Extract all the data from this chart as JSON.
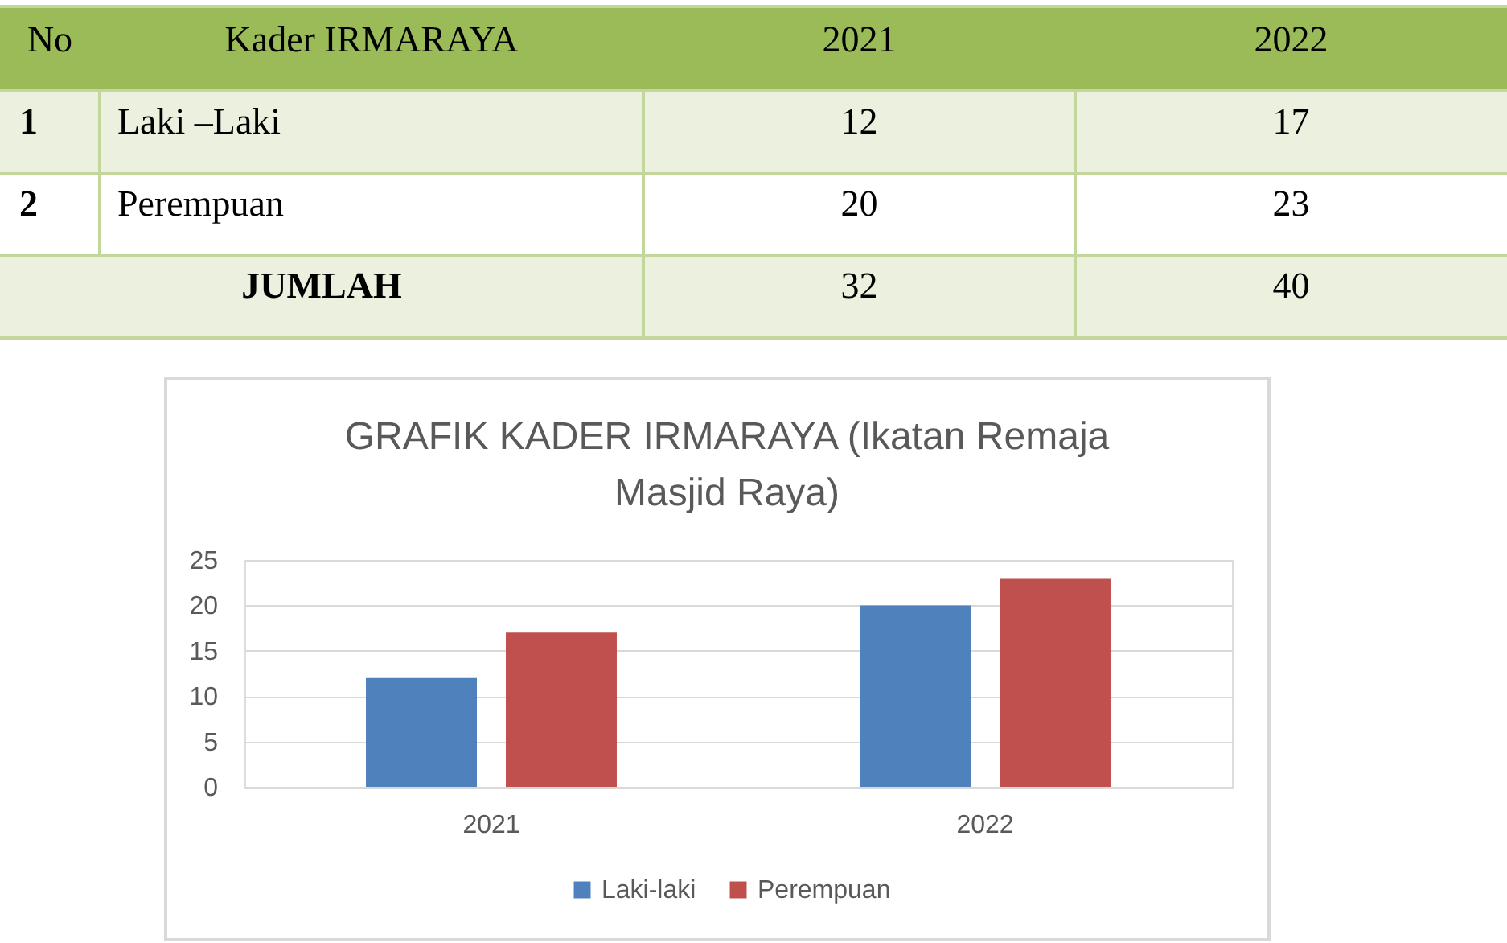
{
  "chart_data": [
    {
      "type": "other",
      "annotations": [
        "No",
        "Kader IRMARAYA"
      ],
      "categories": [
        "2021",
        "2022"
      ],
      "y_categories": [
        "1",
        "2",
        null
      ],
      "y2_categories": [
        "Laki –Laki",
        "Perempuan",
        "JUMLAH"
      ],
      "cell_labels": [
        [
          "12",
          "17"
        ],
        [
          "20",
          "23"
        ],
        [
          "32",
          "40"
        ]
      ]
    },
    {
      "type": "bar",
      "title": "GRAFIK KADER IRMARAYA (Ikatan Remaja Masjid Raya)",
      "categories": [
        "2021",
        "2022"
      ],
      "series": [
        {
          "name": "Laki-laki",
          "color": "#4f81bd",
          "values": [
            12,
            20
          ]
        },
        {
          "name": "Perempuan",
          "color": "#c0504d",
          "values": [
            17,
            23
          ]
        }
      ],
      "ylim": [
        0,
        25
      ],
      "yticks": [
        0,
        5,
        10,
        15,
        20,
        25
      ],
      "grid": "y",
      "legend": "bottom"
    }
  ]
}
